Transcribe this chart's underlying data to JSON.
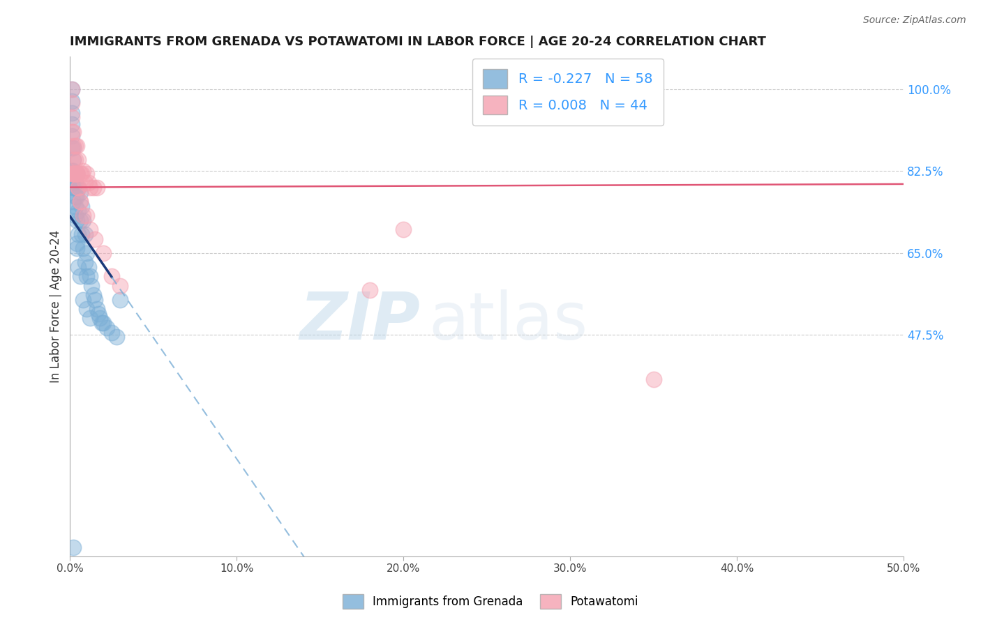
{
  "title": "IMMIGRANTS FROM GRENADA VS POTAWATOMI IN LABOR FORCE | AGE 20-24 CORRELATION CHART",
  "source": "Source: ZipAtlas.com",
  "ylabel": "In Labor Force | Age 20-24",
  "xlim": [
    0.0,
    0.5
  ],
  "ylim": [
    0.0,
    1.07
  ],
  "xticks": [
    0.0,
    0.1,
    0.2,
    0.3,
    0.4,
    0.5
  ],
  "xtick_labels": [
    "0.0%",
    "10.0%",
    "20.0%",
    "30.0%",
    "40.0%",
    "50.0%"
  ],
  "ytick_positions": [
    0.475,
    0.65,
    0.825,
    1.0
  ],
  "ytick_labels": [
    "47.5%",
    "65.0%",
    "82.5%",
    "100.0%"
  ],
  "blue_R": -0.227,
  "blue_N": 58,
  "pink_R": 0.008,
  "pink_N": 44,
  "blue_color": "#7aaed6",
  "pink_color": "#f4a0b0",
  "blue_line_color": "#1a3a7a",
  "blue_dash_color": "#7aaed6",
  "pink_line_color": "#e05575",
  "legend_label_blue": "Immigrants from Grenada",
  "legend_label_pink": "Potawatomi",
  "watermark_zip": "ZIP",
  "watermark_atlas": "atlas",
  "blue_x": [
    0.001,
    0.001,
    0.001,
    0.001,
    0.001,
    0.001,
    0.002,
    0.002,
    0.002,
    0.002,
    0.002,
    0.002,
    0.003,
    0.003,
    0.003,
    0.003,
    0.003,
    0.004,
    0.004,
    0.004,
    0.004,
    0.005,
    0.005,
    0.005,
    0.006,
    0.006,
    0.007,
    0.007,
    0.008,
    0.008,
    0.009,
    0.009,
    0.01,
    0.01,
    0.011,
    0.012,
    0.013,
    0.014,
    0.015,
    0.016,
    0.017,
    0.018,
    0.019,
    0.02,
    0.022,
    0.025,
    0.028,
    0.001,
    0.002,
    0.003,
    0.004,
    0.005,
    0.006,
    0.008,
    0.01,
    0.012,
    0.03,
    0.002
  ],
  "blue_y": [
    1.0,
    0.975,
    0.95,
    0.925,
    0.9,
    0.875,
    0.875,
    0.85,
    0.825,
    0.8,
    0.82,
    0.79,
    0.82,
    0.8,
    0.77,
    0.75,
    0.73,
    0.82,
    0.77,
    0.72,
    0.67,
    0.79,
    0.74,
    0.69,
    0.78,
    0.72,
    0.75,
    0.69,
    0.72,
    0.66,
    0.69,
    0.63,
    0.65,
    0.6,
    0.62,
    0.6,
    0.58,
    0.56,
    0.55,
    0.53,
    0.52,
    0.51,
    0.5,
    0.5,
    0.49,
    0.48,
    0.47,
    0.825,
    0.76,
    0.79,
    0.66,
    0.62,
    0.6,
    0.55,
    0.53,
    0.51,
    0.55,
    0.02
  ],
  "pink_x": [
    0.001,
    0.001,
    0.001,
    0.001,
    0.002,
    0.002,
    0.002,
    0.002,
    0.003,
    0.003,
    0.003,
    0.004,
    0.004,
    0.005,
    0.005,
    0.006,
    0.006,
    0.007,
    0.008,
    0.009,
    0.01,
    0.011,
    0.012,
    0.014,
    0.016,
    0.002,
    0.003,
    0.004,
    0.005,
    0.006,
    0.008,
    0.01,
    0.012,
    0.015,
    0.02,
    0.025,
    0.03,
    0.001,
    0.002,
    0.003,
    0.004,
    0.18,
    0.2,
    0.35
  ],
  "pink_y": [
    1.0,
    0.97,
    0.94,
    0.91,
    0.91,
    0.88,
    0.85,
    0.82,
    0.88,
    0.85,
    0.82,
    0.88,
    0.82,
    0.85,
    0.79,
    0.82,
    0.76,
    0.82,
    0.825,
    0.8,
    0.82,
    0.8,
    0.79,
    0.79,
    0.79,
    0.82,
    0.82,
    0.82,
    0.79,
    0.76,
    0.73,
    0.73,
    0.7,
    0.68,
    0.65,
    0.6,
    0.58,
    0.82,
    0.82,
    0.82,
    0.82,
    0.57,
    0.7,
    0.38
  ]
}
